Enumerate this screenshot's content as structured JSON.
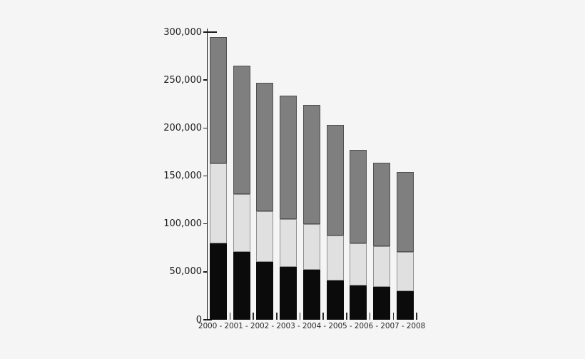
{
  "chart_data": {
    "type": "bar",
    "stacked": true,
    "title": "",
    "xlabel": "",
    "ylabel": "",
    "categories": [
      "2000",
      "2001",
      "2002",
      "2003",
      "2004",
      "2005",
      "2006",
      "2007",
      "2008"
    ],
    "series": [
      {
        "name": "bottom-segment-black",
        "color": "#0b0b0b",
        "border": "#0b0b0b",
        "values": [
          80000,
          71000,
          60000,
          55000,
          52000,
          41000,
          36000,
          34000,
          30000
        ]
      },
      {
        "name": "middle-segment-light-gray",
        "color": "#e0e0e0",
        "border": "#8f8f8f",
        "values": [
          83000,
          60000,
          53000,
          50000,
          48000,
          47000,
          44000,
          43000,
          41000
        ]
      },
      {
        "name": "top-segment-dark-gray",
        "color": "#7f7f7f",
        "border": "#4f4f4f",
        "values": [
          132000,
          134000,
          134000,
          129000,
          124000,
          115000,
          97000,
          87000,
          83000
        ]
      }
    ],
    "totals": [
      295000,
      265000,
      247000,
      234000,
      224000,
      203000,
      177000,
      164000,
      154000
    ],
    "ylim": [
      0,
      300000
    ],
    "yticks": [
      {
        "value": 0,
        "label": "0"
      },
      {
        "value": 50000,
        "label": "50,000"
      },
      {
        "value": 100000,
        "label": "100,000"
      },
      {
        "value": 150000,
        "label": "150,000"
      },
      {
        "value": 200000,
        "label": "200,000"
      },
      {
        "value": 250000,
        "label": "250,000"
      },
      {
        "value": 300000,
        "label": "300,000"
      }
    ],
    "xlabel_row": "2000 - 2001 - 2002 - 2003 - 2004 - 2005 - 2006 - 2007 - 2008",
    "xlabel_separator": " - ",
    "legend": "none",
    "grid": false,
    "background": "#f5f5f5",
    "axis_color": "#1a1a1a"
  }
}
